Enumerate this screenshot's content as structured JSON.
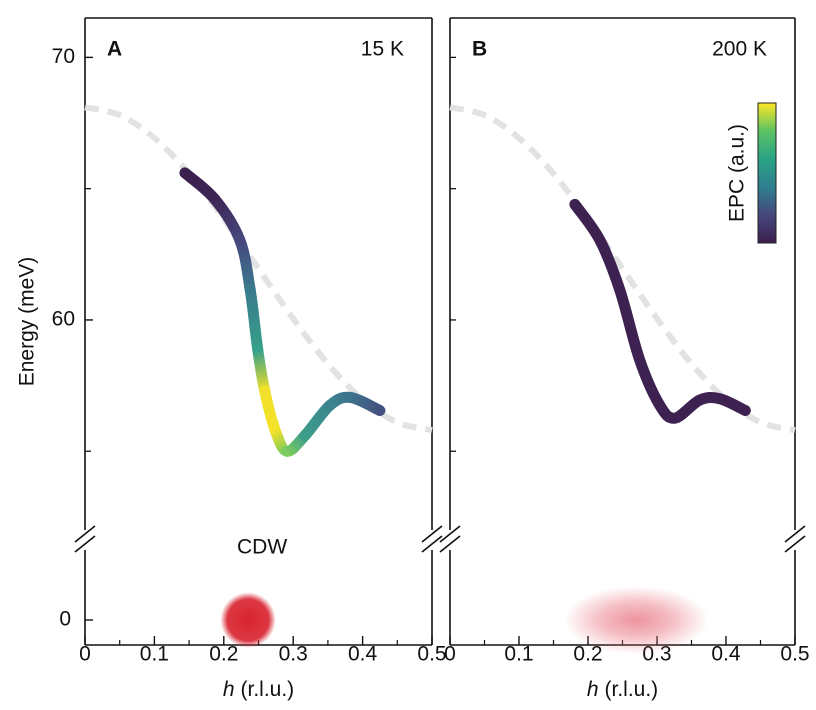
{
  "chart_data": [
    {
      "type": "line",
      "label": "A",
      "title": "15 K",
      "y_label": "Energy (meV)",
      "x_label_var": "h",
      "x_label_unit": "(r.l.u.)",
      "xlim": [
        0,
        0.5
      ],
      "xticks": [
        0,
        0.1,
        0.2,
        0.3,
        0.4,
        0.5
      ],
      "xminor": [
        0.05,
        0.15,
        0.25,
        0.35,
        0.45
      ],
      "ylim": [
        52,
        71.5
      ],
      "yticks": [
        60,
        70
      ],
      "yminor": [
        55,
        65
      ],
      "ylim_lower": [
        -1,
        3.2
      ],
      "yticks_lower": [
        0
      ],
      "series": [
        {
          "color": "#e2e2e2",
          "dash": true,
          "x": [
            0,
            0.05,
            0.1,
            0.15,
            0.2,
            0.25,
            0.3,
            0.35,
            0.4,
            0.45,
            0.5
          ],
          "values": [
            68.1,
            67.8,
            66.93,
            65.57,
            63.85,
            61.95,
            60.05,
            58.33,
            56.97,
            56.1,
            55.8
          ]
        },
        {
          "x": [
            0.144,
            0.187,
            0.223,
            0.238,
            0.249,
            0.259,
            0.274,
            0.291,
            0.317,
            0.353,
            0.382,
            0.425
          ],
          "values": [
            65.6,
            64.6,
            63.05,
            61.15,
            58.85,
            57.3,
            55.8,
            55.0,
            55.6,
            56.75,
            57.05,
            56.55
          ],
          "colors": [
            "#3b1f4e",
            "#3d2555",
            "#46477d",
            "#3a7a8e",
            "#35a08a",
            "#f1e02b",
            "#f4e22a",
            "#7ccb5f",
            "#3c9e8a",
            "#3b848e",
            "#3e738e",
            "#44507f"
          ]
        }
      ],
      "cdw": {
        "label": "CDW",
        "h": 0.235,
        "energy": 0,
        "width": 0.08,
        "color": "#d8222e"
      }
    },
    {
      "type": "line",
      "label": "B",
      "title": "200 K",
      "x_label_var": "h",
      "x_label_unit": "(r.l.u.)",
      "xlim": [
        0,
        0.5
      ],
      "xticks": [
        0,
        0.1,
        0.2,
        0.3,
        0.4,
        0.5
      ],
      "xminor": [
        0.05,
        0.15,
        0.25,
        0.35,
        0.45
      ],
      "ylim": [
        52,
        71.5
      ],
      "yminor": [
        55,
        60,
        65,
        70
      ],
      "ylim_lower": [
        -1,
        3.2
      ],
      "series": [
        {
          "color": "#e2e2e2",
          "dash": true,
          "x": [
            0,
            0.05,
            0.1,
            0.15,
            0.2,
            0.25,
            0.3,
            0.35,
            0.4,
            0.45,
            0.5
          ],
          "values": [
            68.1,
            67.8,
            66.93,
            65.57,
            63.85,
            61.95,
            60.05,
            58.33,
            56.97,
            56.1,
            55.8
          ]
        },
        {
          "x": [
            0.181,
            0.217,
            0.246,
            0.275,
            0.304,
            0.326,
            0.362,
            0.391,
            0.428
          ],
          "values": [
            64.4,
            63.05,
            61.15,
            58.47,
            56.75,
            56.26,
            56.95,
            57.0,
            56.55
          ],
          "color": "#3d2150"
        }
      ],
      "cdw": {
        "h": 0.27,
        "energy": 0,
        "width": 0.21,
        "color": "#e8707e"
      },
      "colorbar": {
        "label": "EPC (a.u.)",
        "colors": [
          "#3b1f4e",
          "#46477d",
          "#2f7f8e",
          "#29a386",
          "#5cc463",
          "#fde725"
        ]
      }
    }
  ]
}
